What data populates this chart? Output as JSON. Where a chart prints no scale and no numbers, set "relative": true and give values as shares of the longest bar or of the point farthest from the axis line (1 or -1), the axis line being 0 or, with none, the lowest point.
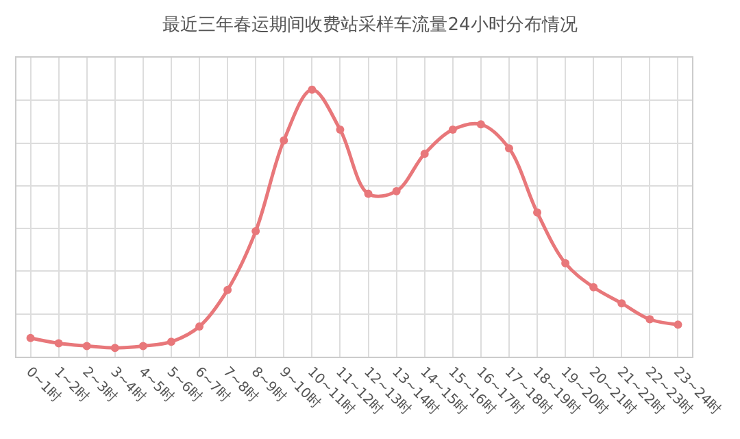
{
  "chart_data": {
    "type": "line",
    "title": "最近三年春运期间收费站采样车流量24小时分布情况",
    "categories": [
      "0~1时",
      "1~2时",
      "2~3时",
      "3~4时",
      "4~5时",
      "5~6时",
      "6~7时",
      "7~8时",
      "8~9时",
      "9~10时",
      "10~11时",
      "11~12时",
      "12~13时",
      "13~14时",
      "14~15时",
      "15~16时",
      "16~17时",
      "17~18时",
      "18~19时",
      "19~20时",
      "20~21时",
      "21~22时",
      "22~23时",
      "23~24时"
    ],
    "series": [
      {
        "color": "#e8777a",
        "values": [
          0.07,
          0.05,
          0.04,
          0.033,
          0.04,
          0.056,
          0.113,
          0.25,
          0.47,
          0.81,
          1,
          0.85,
          0.61,
          0.62,
          0.76,
          0.85,
          0.87,
          0.78,
          0.54,
          0.35,
          0.26,
          0.2,
          0.14,
          0.12
        ]
      }
    ],
    "relative": true,
    "grid": true,
    "legend": false,
    "tick_labels": "x",
    "marker": "circle",
    "line_style": "solid"
  }
}
